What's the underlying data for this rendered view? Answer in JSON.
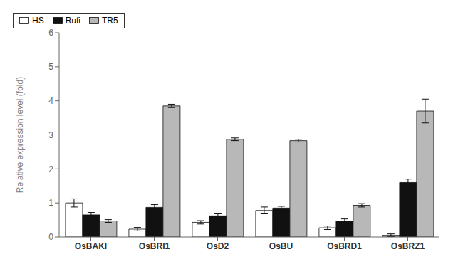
{
  "chart_data": {
    "type": "bar",
    "categories": [
      "OsBAKI",
      "OsBRI1",
      "OsD2",
      "OsBU",
      "OsBRD1",
      "OsBRZ1"
    ],
    "ylabel": "Relative expression level (fold)",
    "ylim": [
      0,
      6
    ],
    "yticks": [
      0,
      1,
      2,
      3,
      4,
      5,
      6
    ],
    "grid": false,
    "legend": "upper right",
    "series": [
      {
        "name": "HS",
        "color": "#ffffff",
        "values": [
          1.0,
          0.23,
          0.43,
          0.78,
          0.27,
          0.05
        ],
        "errors": [
          0.12,
          0.05,
          0.05,
          0.1,
          0.05,
          0.04
        ]
      },
      {
        "name": "Rufi",
        "color": "#111111",
        "values": [
          0.65,
          0.87,
          0.62,
          0.85,
          0.47,
          1.6
        ],
        "errors": [
          0.07,
          0.08,
          0.06,
          0.05,
          0.06,
          0.1
        ]
      },
      {
        "name": "TR5",
        "color": "#b8b8b8",
        "values": [
          0.47,
          3.85,
          2.87,
          2.83,
          0.93,
          3.7
        ],
        "errors": [
          0.04,
          0.05,
          0.04,
          0.04,
          0.05,
          0.35
        ]
      }
    ]
  }
}
